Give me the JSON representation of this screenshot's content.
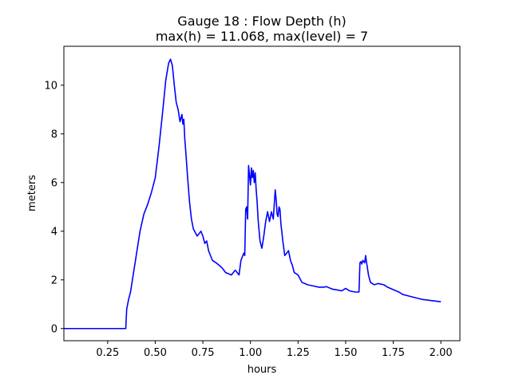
{
  "chart_data": {
    "type": "line",
    "title": "Gauge 18 : Flow Depth (h)",
    "subtitle": "max(h) =  11.068,    max(level) = 7",
    "xlabel": "hours",
    "ylabel": "meters",
    "xlim": [
      0.02,
      2.1
    ],
    "ylim": [
      -0.5,
      11.6
    ],
    "grid": false,
    "x_ticks": [
      0.25,
      0.5,
      0.75,
      1.0,
      1.25,
      1.5,
      1.75,
      2.0
    ],
    "x_tick_labels": [
      "0.25",
      "0.50",
      "0.75",
      "1.00",
      "1.25",
      "1.50",
      "1.75",
      "2.00"
    ],
    "y_ticks": [
      0,
      2,
      4,
      6,
      8,
      10
    ],
    "y_tick_labels": [
      "0",
      "2",
      "4",
      "6",
      "8",
      "10"
    ],
    "series": [
      {
        "color": "#0000ff",
        "x": [
          0.02,
          0.345,
          0.35,
          0.36,
          0.37,
          0.38,
          0.4,
          0.42,
          0.44,
          0.46,
          0.48,
          0.5,
          0.52,
          0.54,
          0.555,
          0.57,
          0.58,
          0.59,
          0.6,
          0.61,
          0.62,
          0.63,
          0.64,
          0.645,
          0.65,
          0.655,
          0.66,
          0.67,
          0.68,
          0.69,
          0.7,
          0.72,
          0.74,
          0.75,
          0.76,
          0.77,
          0.78,
          0.79,
          0.8,
          0.82,
          0.85,
          0.87,
          0.9,
          0.92,
          0.94,
          0.95,
          0.96,
          0.965,
          0.97,
          0.975,
          0.98,
          0.985,
          0.99,
          1.0,
          1.005,
          1.01,
          1.015,
          1.02,
          1.025,
          1.03,
          1.035,
          1.04,
          1.05,
          1.06,
          1.07,
          1.08,
          1.09,
          1.1,
          1.11,
          1.12,
          1.13,
          1.135,
          1.14,
          1.145,
          1.15,
          1.155,
          1.16,
          1.17,
          1.18,
          1.19,
          1.2,
          1.21,
          1.22,
          1.23,
          1.25,
          1.27,
          1.3,
          1.33,
          1.36,
          1.38,
          1.4,
          1.43,
          1.46,
          1.48,
          1.5,
          1.52,
          1.55,
          1.57,
          1.575,
          1.58,
          1.585,
          1.59,
          1.6,
          1.605,
          1.61,
          1.62,
          1.63,
          1.65,
          1.67,
          1.7,
          1.72,
          1.75,
          1.78,
          1.8,
          1.85,
          1.9,
          1.95,
          2.0
        ],
        "y": [
          0.0,
          0.0,
          0.8,
          1.2,
          1.5,
          2.0,
          3.0,
          4.0,
          4.7,
          5.1,
          5.6,
          6.2,
          7.5,
          9.0,
          10.2,
          10.9,
          11.068,
          10.8,
          10.0,
          9.3,
          9.0,
          8.5,
          8.8,
          8.4,
          8.6,
          7.8,
          7.3,
          6.2,
          5.2,
          4.5,
          4.1,
          3.8,
          4.0,
          3.8,
          3.5,
          3.6,
          3.2,
          3.0,
          2.8,
          2.7,
          2.5,
          2.3,
          2.2,
          2.4,
          2.2,
          2.8,
          3.0,
          3.1,
          3.0,
          4.9,
          5.0,
          4.5,
          6.7,
          5.9,
          6.6,
          6.2,
          6.5,
          6.0,
          6.4,
          5.7,
          5.2,
          4.5,
          3.6,
          3.3,
          3.8,
          4.4,
          4.8,
          4.4,
          4.8,
          4.5,
          5.7,
          5.3,
          4.7,
          4.6,
          5.0,
          4.9,
          4.3,
          3.6,
          3.0,
          3.1,
          3.2,
          2.8,
          2.6,
          2.3,
          2.2,
          1.9,
          1.8,
          1.75,
          1.7,
          1.7,
          1.72,
          1.62,
          1.58,
          1.55,
          1.65,
          1.55,
          1.5,
          1.5,
          2.7,
          2.75,
          2.65,
          2.8,
          2.7,
          3.0,
          2.7,
          2.2,
          1.9,
          1.8,
          1.85,
          1.8,
          1.7,
          1.6,
          1.5,
          1.4,
          1.3,
          1.2,
          1.15,
          1.1
        ]
      }
    ]
  }
}
